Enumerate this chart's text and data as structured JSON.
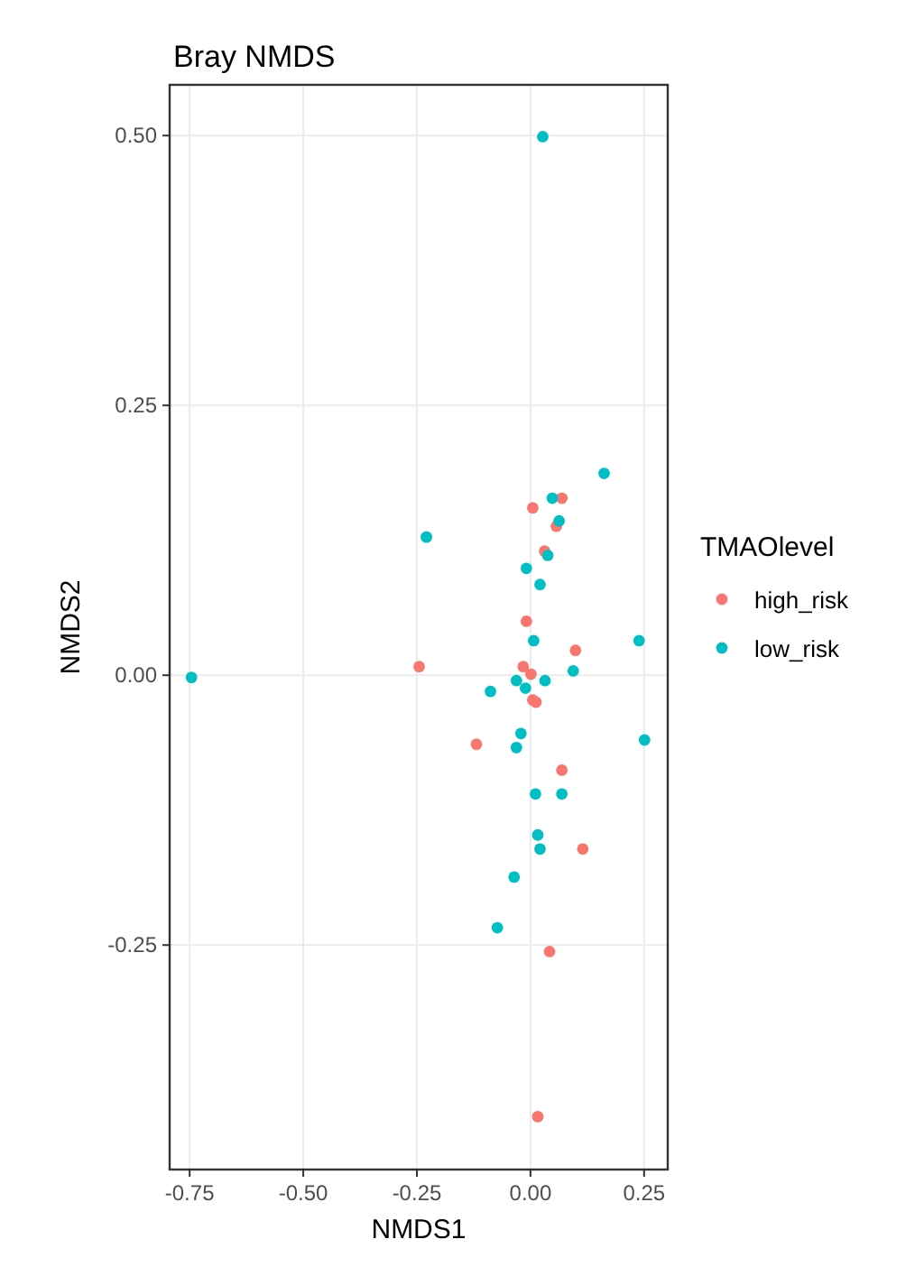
{
  "chart_data": {
    "type": "scatter",
    "title": "Bray NMDS",
    "xlabel": "NMDS1",
    "ylabel": "NMDS2",
    "legend_title": "TMAOlevel",
    "legend": "right",
    "grid": true,
    "marker": "circle",
    "xlim": [
      -0.794,
      0.302
    ],
    "ylim": [
      -0.458,
      0.547
    ],
    "xticks": [
      -0.75,
      {
        "value": -0.5,
        "label": "-0.50"
      },
      -0.25,
      {
        "value": 0,
        "label": "0.00"
      },
      0.25
    ],
    "yticks": [
      -0.25,
      {
        "value": 0,
        "label": "0.00"
      },
      0.25,
      {
        "value": 0.5,
        "label": "0.50"
      }
    ],
    "series": [
      {
        "name": "high_risk",
        "color": "#f8766d",
        "x": [
          0.069,
          0.005,
          0.057,
          0.031,
          -0.009,
          0.099,
          -0.245,
          -0.016,
          0.001,
          0.005,
          0.012,
          -0.119,
          0.069,
          0.115,
          0.042,
          0.016
        ],
        "values": [
          0.164,
          0.155,
          0.138,
          0.115,
          0.05,
          0.023,
          0.008,
          0.008,
          0.001,
          -0.023,
          -0.025,
          -0.064,
          -0.088,
          -0.161,
          -0.256,
          -0.409
        ]
      },
      {
        "name": "low_risk",
        "color": "#00bfc4",
        "x": [
          0.027,
          0.162,
          0.048,
          0.063,
          -0.229,
          0.038,
          -0.009,
          0.021,
          0.007,
          0.239,
          0.094,
          -0.031,
          0.032,
          -0.011,
          -0.088,
          -0.746,
          -0.021,
          0.251,
          -0.031,
          0.011,
          0.069,
          0.016,
          0.021,
          -0.036,
          -0.073
        ],
        "values": [
          0.499,
          0.187,
          0.164,
          0.143,
          0.128,
          0.111,
          0.099,
          0.084,
          0.032,
          0.032,
          0.004,
          -0.005,
          -0.005,
          -0.012,
          -0.015,
          -0.002,
          -0.054,
          -0.06,
          -0.067,
          -0.11,
          -0.11,
          -0.148,
          -0.161,
          -0.187,
          -0.234
        ]
      }
    ]
  }
}
